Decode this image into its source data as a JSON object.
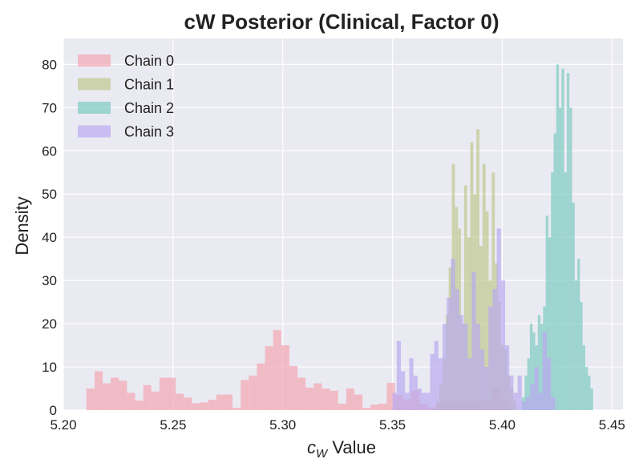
{
  "chart_data": {
    "type": "histogram",
    "title": "cW Posterior (Clinical, Factor 0)",
    "xlabel_var": "c",
    "xlabel_sub": "W",
    "xlabel_rest": " Value",
    "ylabel": "Density",
    "xlim": [
      5.2,
      5.455
    ],
    "ylim": [
      0,
      86
    ],
    "xticks": [
      5.2,
      5.25,
      5.3,
      5.35,
      5.4,
      5.45
    ],
    "xtick_labels": [
      "5.20",
      "5.25",
      "5.30",
      "5.35",
      "5.40",
      "5.45"
    ],
    "yticks": [
      0,
      10,
      20,
      30,
      40,
      50,
      60,
      70,
      80
    ],
    "ytick_labels": [
      "0",
      "10",
      "20",
      "30",
      "40",
      "50",
      "60",
      "70",
      "80"
    ],
    "grid": true,
    "legend_position": "top-left",
    "series": [
      {
        "name": "Chain 0",
        "color": "#f4a7b4",
        "opacity": 0.7,
        "bins": [
          [
            5.2105,
            5.2142,
            5.0
          ],
          [
            5.2142,
            5.2179,
            9.0
          ],
          [
            5.2179,
            5.2216,
            6.2
          ],
          [
            5.2216,
            5.2253,
            7.5
          ],
          [
            5.2253,
            5.229,
            6.8
          ],
          [
            5.229,
            5.2327,
            4.0
          ],
          [
            5.2327,
            5.2364,
            2.2
          ],
          [
            5.2364,
            5.2401,
            5.8
          ],
          [
            5.2401,
            5.2438,
            4.3
          ],
          [
            5.2438,
            5.2475,
            7.5
          ],
          [
            5.2475,
            5.2512,
            7.5
          ],
          [
            5.2512,
            5.2549,
            3.8
          ],
          [
            5.2549,
            5.2586,
            2.9
          ],
          [
            5.2586,
            5.2623,
            1.6
          ],
          [
            5.2623,
            5.266,
            1.8
          ],
          [
            5.266,
            5.2697,
            2.4
          ],
          [
            5.2697,
            5.2734,
            3.6
          ],
          [
            5.2734,
            5.2771,
            3.6
          ],
          [
            5.2771,
            5.2808,
            0.5
          ],
          [
            5.2808,
            5.2845,
            7.0
          ],
          [
            5.2845,
            5.2882,
            8.0
          ],
          [
            5.2882,
            5.2919,
            10.8
          ],
          [
            5.2919,
            5.2956,
            14.8
          ],
          [
            5.2956,
            5.2993,
            18.5
          ],
          [
            5.2993,
            5.303,
            15.0
          ],
          [
            5.303,
            5.3067,
            10.2
          ],
          [
            5.3067,
            5.3104,
            7.5
          ],
          [
            5.3104,
            5.3141,
            5.2
          ],
          [
            5.3141,
            5.3178,
            6.2
          ],
          [
            5.3178,
            5.3215,
            5.0
          ],
          [
            5.3215,
            5.3252,
            4.5
          ],
          [
            5.3252,
            5.3289,
            1.5
          ],
          [
            5.3289,
            5.3326,
            5.0
          ],
          [
            5.3326,
            5.3363,
            3.6
          ],
          [
            5.3363,
            5.34,
            0.5
          ],
          [
            5.34,
            5.3437,
            1.3
          ],
          [
            5.3437,
            5.3474,
            1.5
          ],
          [
            5.3474,
            5.3511,
            6.3
          ],
          [
            5.3511,
            5.3548,
            3.5
          ],
          [
            5.3548,
            5.3585,
            2.5
          ],
          [
            5.3585,
            5.3622,
            4.5
          ],
          [
            5.3622,
            5.3659,
            1.5
          ],
          [
            5.3659,
            5.3696,
            0.6
          ],
          [
            5.3696,
            5.3733,
            1.5
          ],
          [
            5.3733,
            5.377,
            2.0
          ],
          [
            5.377,
            5.3807,
            2.0
          ],
          [
            5.3807,
            5.3844,
            2.0
          ],
          [
            5.3844,
            5.3881,
            1.8
          ],
          [
            5.3881,
            5.3918,
            2.2
          ],
          [
            5.3918,
            5.3955,
            2.0
          ],
          [
            5.3955,
            5.3992,
            5.3
          ],
          [
            5.3992,
            5.4029,
            2.6
          ]
        ]
      },
      {
        "name": "Chain 1",
        "color": "#bfc98f",
        "opacity": 0.7,
        "bins": [
          [
            5.37,
            5.3714,
            2.0
          ],
          [
            5.3714,
            5.3728,
            6.0
          ],
          [
            5.3728,
            5.3742,
            12.0
          ],
          [
            5.3742,
            5.3756,
            22.0
          ],
          [
            5.3756,
            5.377,
            33.0
          ],
          [
            5.377,
            5.3784,
            57.0
          ],
          [
            5.3784,
            5.3798,
            47.0
          ],
          [
            5.3798,
            5.3812,
            42.0
          ],
          [
            5.3812,
            5.3826,
            20.0
          ],
          [
            5.3826,
            5.384,
            52.0
          ],
          [
            5.384,
            5.3854,
            40.0
          ],
          [
            5.3854,
            5.3868,
            62.0
          ],
          [
            5.3868,
            5.3882,
            50.0
          ],
          [
            5.3882,
            5.3896,
            65.0
          ],
          [
            5.3896,
            5.391,
            38.0
          ],
          [
            5.391,
            5.3924,
            57.0
          ],
          [
            5.3924,
            5.3938,
            46.0
          ],
          [
            5.3938,
            5.3952,
            30.0
          ],
          [
            5.3952,
            5.3966,
            55.0
          ],
          [
            5.3966,
            5.398,
            34.0
          ],
          [
            5.398,
            5.3994,
            25.0
          ],
          [
            5.3994,
            5.4008,
            15.0
          ],
          [
            5.4008,
            5.4022,
            14.0
          ],
          [
            5.4022,
            5.4036,
            8.0
          ],
          [
            5.4036,
            5.405,
            5.0
          ],
          [
            5.405,
            5.4064,
            2.0
          ]
        ]
      },
      {
        "name": "Chain 2",
        "color": "#7ccac1",
        "opacity": 0.7,
        "bins": [
          [
            5.409,
            5.4102,
            3.0
          ],
          [
            5.4102,
            5.4114,
            8.0
          ],
          [
            5.4114,
            5.4126,
            12.0
          ],
          [
            5.4126,
            5.4138,
            20.0
          ],
          [
            5.4138,
            5.415,
            18.0
          ],
          [
            5.415,
            5.4162,
            15.0
          ],
          [
            5.4162,
            5.4174,
            22.0
          ],
          [
            5.4174,
            5.4186,
            20.0
          ],
          [
            5.4186,
            5.4198,
            24.0
          ],
          [
            5.4198,
            5.421,
            45.0
          ],
          [
            5.421,
            5.4222,
            40.0
          ],
          [
            5.4222,
            5.4234,
            55.0
          ],
          [
            5.4234,
            5.4246,
            64.0
          ],
          [
            5.4246,
            5.4258,
            80.0
          ],
          [
            5.4258,
            5.427,
            70.0
          ],
          [
            5.427,
            5.4282,
            79.0
          ],
          [
            5.4282,
            5.4294,
            55.0
          ],
          [
            5.4294,
            5.4306,
            78.0
          ],
          [
            5.4306,
            5.4318,
            70.0
          ],
          [
            5.4318,
            5.433,
            48.0
          ],
          [
            5.433,
            5.4342,
            30.0
          ],
          [
            5.4342,
            5.4354,
            35.0
          ],
          [
            5.4354,
            5.4366,
            25.0
          ],
          [
            5.4366,
            5.4378,
            15.0
          ],
          [
            5.4378,
            5.439,
            10.0
          ],
          [
            5.439,
            5.4402,
            8.0
          ],
          [
            5.4402,
            5.4414,
            5.0
          ]
        ]
      },
      {
        "name": "Chain 3",
        "color": "#b9a9f0",
        "opacity": 0.7,
        "bins": [
          [
            5.35,
            5.3519,
            4.0
          ],
          [
            5.3519,
            5.3538,
            16.0
          ],
          [
            5.3538,
            5.3557,
            9.0
          ],
          [
            5.3557,
            5.3576,
            4.0
          ],
          [
            5.3576,
            5.3595,
            12.0
          ],
          [
            5.3595,
            5.3614,
            8.0
          ],
          [
            5.3614,
            5.3633,
            5.0
          ],
          [
            5.3633,
            5.3652,
            4.0
          ],
          [
            5.3652,
            5.3671,
            4.0
          ],
          [
            5.3671,
            5.369,
            13.0
          ],
          [
            5.369,
            5.3709,
            16.0
          ],
          [
            5.3709,
            5.3728,
            12.0
          ],
          [
            5.3728,
            5.3747,
            20.0
          ],
          [
            5.3747,
            5.3766,
            26.0
          ],
          [
            5.3766,
            5.3785,
            35.0
          ],
          [
            5.3785,
            5.3804,
            28.0
          ],
          [
            5.3804,
            5.3823,
            22.0
          ],
          [
            5.3823,
            5.3842,
            20.0
          ],
          [
            5.3842,
            5.3861,
            12.0
          ],
          [
            5.3861,
            5.388,
            32.0
          ],
          [
            5.388,
            5.3899,
            20.0
          ],
          [
            5.3899,
            5.3918,
            14.0
          ],
          [
            5.3918,
            5.3937,
            10.0
          ],
          [
            5.3937,
            5.3956,
            24.0
          ],
          [
            5.3956,
            5.3975,
            28.0
          ],
          [
            5.3975,
            5.3994,
            42.0
          ],
          [
            5.3994,
            5.4013,
            30.0
          ],
          [
            5.4013,
            5.4032,
            15.0
          ],
          [
            5.4032,
            5.4051,
            8.0
          ],
          [
            5.4051,
            5.407,
            4.0
          ],
          [
            5.407,
            5.4089,
            8.0
          ],
          [
            5.4089,
            5.4108,
            2.0
          ],
          [
            5.4108,
            5.4127,
            3.0
          ],
          [
            5.4127,
            5.4146,
            6.0
          ],
          [
            5.4146,
            5.4165,
            10.0
          ],
          [
            5.4165,
            5.4184,
            4.0
          ],
          [
            5.4184,
            5.4203,
            18.0
          ],
          [
            5.4203,
            5.4222,
            12.0
          ],
          [
            5.4222,
            5.4241,
            3.0
          ]
        ]
      }
    ]
  }
}
